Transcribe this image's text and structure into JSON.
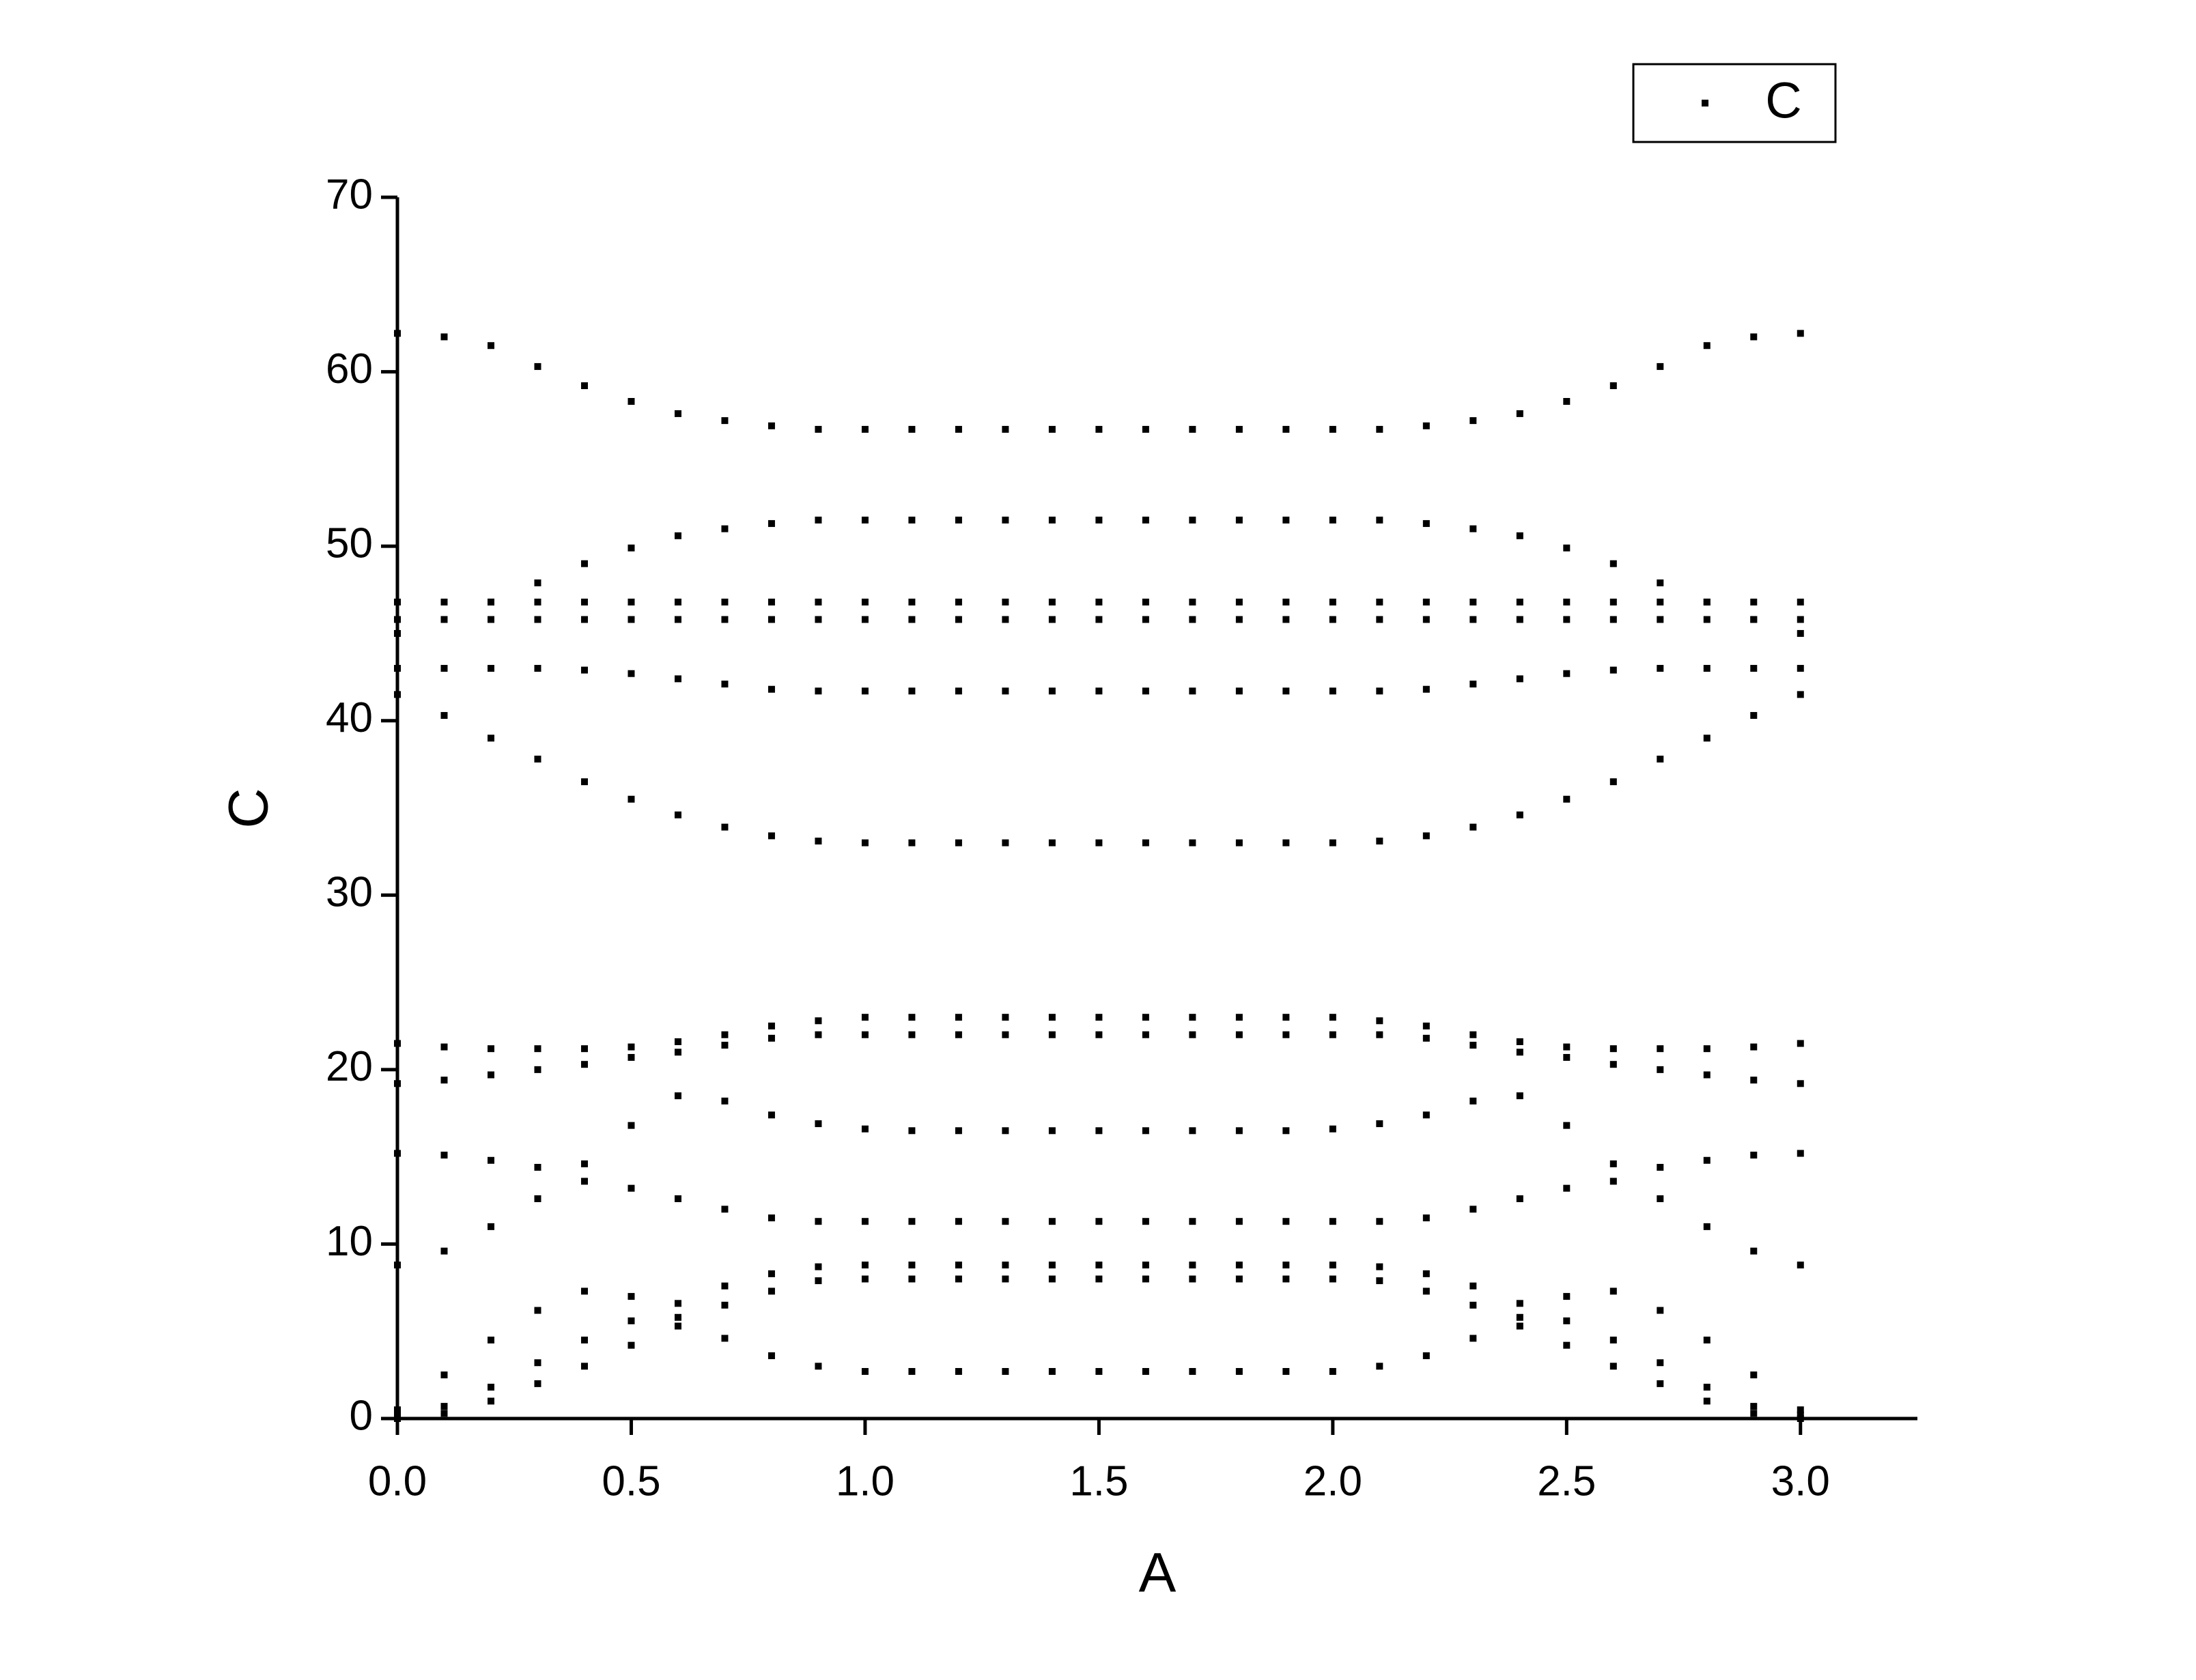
{
  "chart_data": {
    "type": "scatter",
    "xlabel": "A",
    "ylabel": "C",
    "color": "#000000",
    "legend": "top-right",
    "xlim": [
      0,
      3.25
    ],
    "ylim": [
      0,
      70
    ],
    "xticks": [
      {
        "value": 0,
        "label": "0.0"
      },
      0.5,
      {
        "value": 1,
        "label": "1.0"
      },
      1.5,
      {
        "value": 2,
        "label": "2.0"
      },
      2.5,
      {
        "value": 3,
        "label": "3.0"
      }
    ],
    "yticks": [
      0,
      10,
      20,
      30,
      40,
      50,
      60,
      70
    ],
    "x": [
      0,
      0.1,
      0.2,
      0.3,
      0.4,
      0.5,
      0.6,
      0.7,
      0.8,
      0.9,
      1.0,
      1.1,
      1.2,
      1.3,
      1.4,
      1.5,
      1.6,
      1.7,
      1.8,
      1.9,
      2.0,
      2.1,
      2.2,
      2.3,
      2.4,
      2.5,
      2.6,
      2.7,
      2.8,
      2.9,
      3.0
    ],
    "series": [
      {
        "name": "C",
        "values": [
          62.2,
          62,
          61.5,
          60.3,
          59.2,
          58.3,
          57.6,
          57.2,
          56.9,
          56.7,
          56.7,
          56.7,
          56.7,
          56.7,
          56.7,
          56.7,
          56.7,
          56.7,
          56.7,
          56.7,
          56.7,
          56.7,
          56.9,
          57.2,
          57.6,
          58.3,
          59.2,
          60.3,
          61.5,
          62,
          62.2
        ]
      },
      {
        "values": [
          46.8,
          46.8,
          46.8,
          46.8,
          46.8,
          46.8,
          46.8,
          46.8,
          46.8,
          46.8,
          46.8,
          46.8,
          46.8,
          46.8,
          46.8,
          46.8,
          46.8,
          46.8,
          46.8,
          46.8,
          46.8,
          46.8,
          46.8,
          46.8,
          46.8,
          46.8,
          46.8,
          46.8,
          46.8,
          46.8,
          46.8
        ]
      },
      {
        "values": [
          45,
          45.8,
          46.8,
          47.9,
          49,
          49.9,
          50.6,
          51,
          51.3,
          51.5,
          51.5,
          51.5,
          51.5,
          51.5,
          51.5,
          51.5,
          51.5,
          51.5,
          51.5,
          51.5,
          51.5,
          51.5,
          51.3,
          51,
          50.6,
          49.9,
          49,
          47.9,
          46.8,
          45.8,
          45
        ]
      },
      {
        "values": [
          43,
          43,
          43,
          43,
          42.9,
          42.7,
          42.4,
          42.1,
          41.8,
          41.7,
          41.7,
          41.7,
          41.7,
          41.7,
          41.7,
          41.7,
          41.7,
          41.7,
          41.7,
          41.7,
          41.7,
          41.7,
          41.8,
          42.1,
          42.4,
          42.7,
          42.9,
          43,
          43,
          43,
          43
        ]
      },
      {
        "values": [
          45.8,
          45.8,
          45.8,
          45.8,
          45.8,
          45.8,
          45.8,
          45.8,
          45.8,
          45.8,
          45.8,
          45.8,
          45.8,
          45.8,
          45.8,
          45.8,
          45.8,
          45.8,
          45.8,
          45.8,
          45.8,
          45.8,
          45.8,
          45.8,
          45.8,
          45.8,
          45.8,
          45.8,
          45.8,
          45.8,
          45.8
        ]
      },
      {
        "values": [
          41.5,
          40.3,
          39,
          37.8,
          36.5,
          35.5,
          34.6,
          33.9,
          33.4,
          33.1,
          33,
          33,
          33,
          33,
          33,
          33,
          33,
          33,
          33,
          33,
          33,
          33.1,
          33.4,
          33.9,
          34.6,
          35.5,
          36.5,
          37.8,
          39,
          40.3,
          41.5
        ]
      },
      {
        "values": [
          21.5,
          21.3,
          21.2,
          21.2,
          21.2,
          21.3,
          21.6,
          22,
          22.5,
          22.8,
          23,
          23,
          23,
          23,
          23,
          23,
          23,
          23,
          23,
          23,
          23,
          22.8,
          22.5,
          22,
          21.6,
          21.3,
          21.2,
          21.2,
          21.2,
          21.3,
          21.5
        ]
      },
      {
        "values": [
          19.2,
          19.4,
          19.7,
          20,
          20.3,
          20.7,
          21,
          21.4,
          21.8,
          22,
          22,
          22,
          22,
          22,
          22,
          22,
          22,
          22,
          22,
          22,
          22,
          22,
          21.8,
          21.4,
          21,
          20.7,
          20.3,
          20,
          19.7,
          19.4,
          19.2
        ]
      },
      {
        "values": [
          15.2,
          15.1,
          14.8,
          14.4,
          14.6,
          16.8,
          18.5,
          18.2,
          17.4,
          16.9,
          16.6,
          16.5,
          16.5,
          16.5,
          16.5,
          16.5,
          16.5,
          16.5,
          16.5,
          16.5,
          16.6,
          16.9,
          17.4,
          18.2,
          18.5,
          16.8,
          14.6,
          14.4,
          14.8,
          15.1,
          15.2
        ]
      },
      {
        "values": [
          8.8,
          9.6,
          11,
          12.6,
          13.6,
          13.2,
          12.6,
          12,
          11.5,
          11.3,
          11.3,
          11.3,
          11.3,
          11.3,
          11.3,
          11.3,
          11.3,
          11.3,
          11.3,
          11.3,
          11.3,
          11.3,
          11.5,
          12,
          12.6,
          13.2,
          13.6,
          12.6,
          11,
          9.6,
          8.8
        ]
      },
      {
        "values": [
          0.5,
          2.5,
          4.5,
          6.2,
          7.3,
          7,
          5.8,
          4.6,
          3.6,
          3,
          2.7,
          2.7,
          2.7,
          2.7,
          2.7,
          2.7,
          2.7,
          2.7,
          2.7,
          2.7,
          2.7,
          3,
          3.6,
          4.6,
          5.8,
          7,
          7.3,
          6.2,
          4.5,
          2.5,
          0.5
        ]
      },
      {
        "values": [
          0.2,
          0.7,
          1.8,
          3.2,
          4.5,
          5.6,
          6.6,
          7.6,
          8.3,
          8.7,
          8.8,
          8.8,
          8.8,
          8.8,
          8.8,
          8.8,
          8.8,
          8.8,
          8.8,
          8.8,
          8.8,
          8.7,
          8.3,
          7.6,
          6.6,
          5.6,
          4.5,
          3.2,
          1.8,
          0.7,
          0.2
        ]
      },
      {
        "values": [
          0,
          0.3,
          1,
          2,
          3,
          4.2,
          5.3,
          6.5,
          7.3,
          7.9,
          8,
          8,
          8,
          8,
          8,
          8,
          8,
          8,
          8,
          8,
          8,
          7.9,
          7.3,
          6.5,
          5.3,
          4.2,
          3,
          2,
          1,
          0.3,
          0
        ]
      }
    ]
  }
}
